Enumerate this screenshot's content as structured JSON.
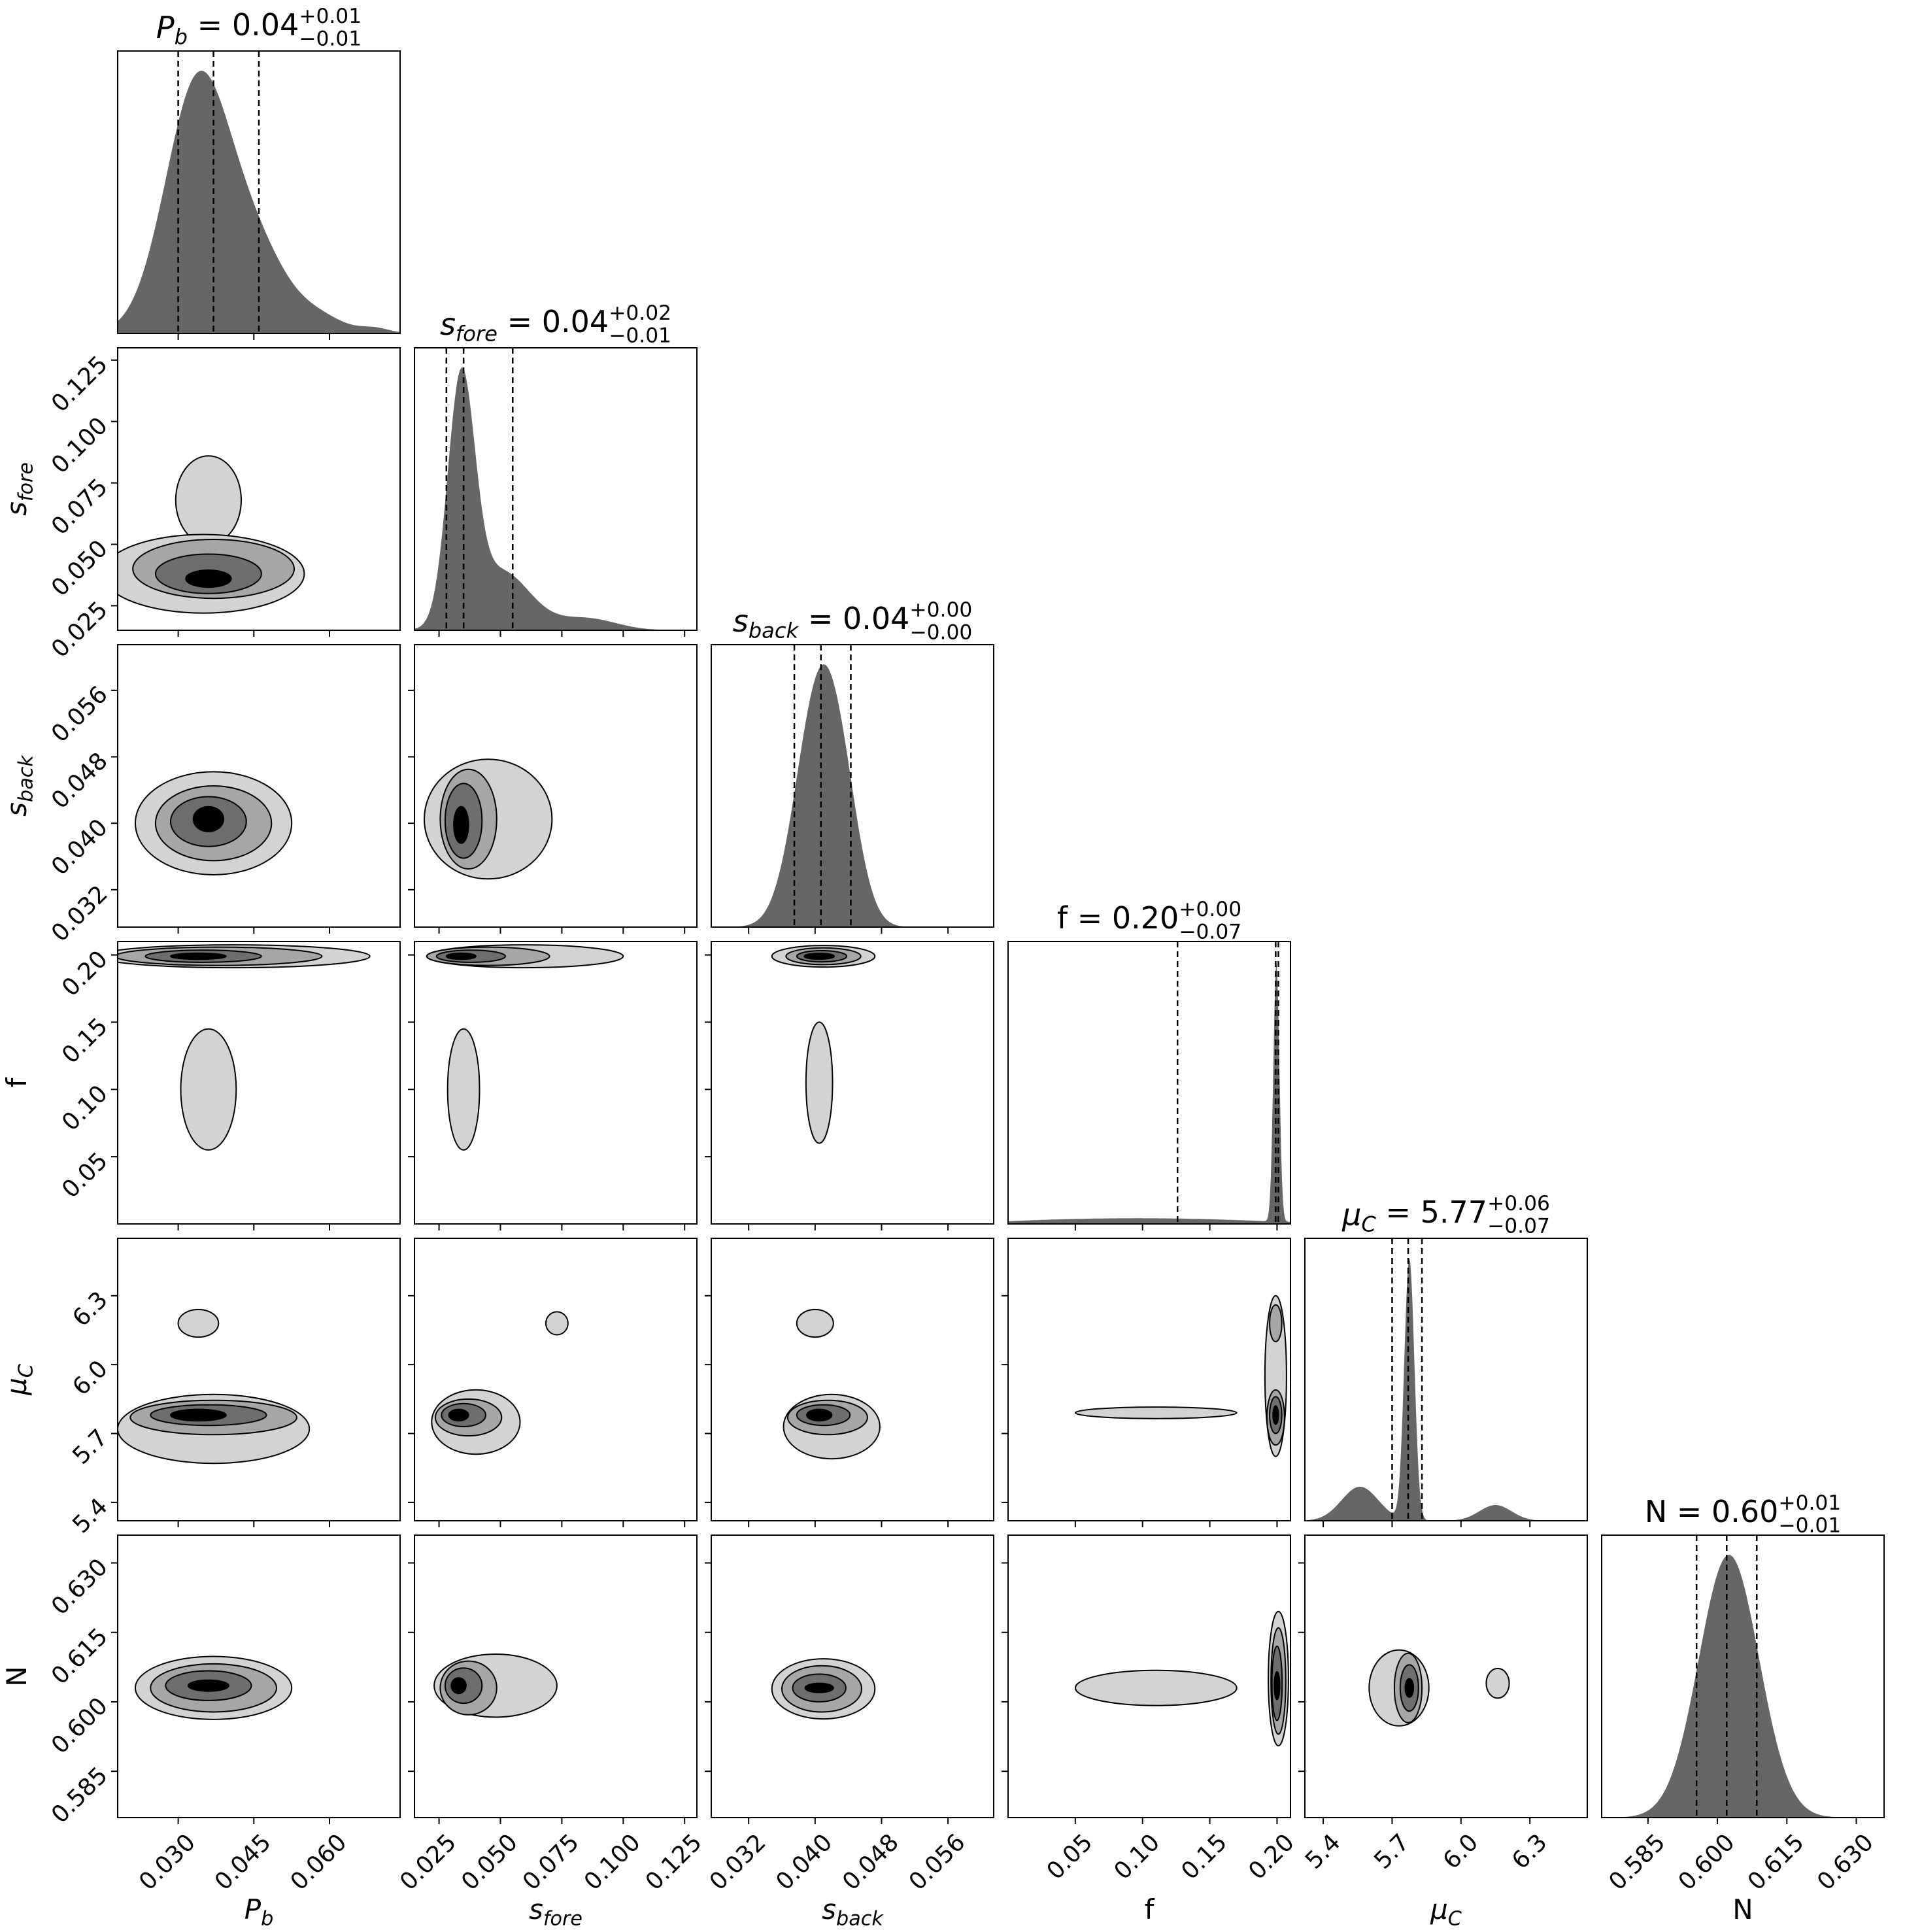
{
  "chart_data": {
    "type": "corner",
    "params": [
      {
        "id": "Pb",
        "axis_label": "P_b",
        "title_label": "P_b",
        "median": "0.04",
        "plus": "+0.01",
        "minus": "−0.01",
        "range": [
          0.018,
          0.074
        ],
        "ticks": [
          0.03,
          0.045,
          0.06
        ],
        "tick_labels": [
          "0.030",
          "0.045",
          "0.060"
        ],
        "quantiles": [
          0.03,
          0.037,
          0.046
        ]
      },
      {
        "id": "sfore",
        "axis_label": "s_fore",
        "title_label": "s_fore",
        "median": "0.04",
        "plus": "+0.02",
        "minus": "−0.01",
        "range": [
          0.015,
          0.13
        ],
        "ticks": [
          0.025,
          0.05,
          0.075,
          0.1,
          0.125
        ],
        "tick_labels": [
          "0.025",
          "0.050",
          "0.075",
          "0.100",
          "0.125"
        ],
        "quantiles": [
          0.028,
          0.035,
          0.055
        ]
      },
      {
        "id": "sback",
        "axis_label": "s_back",
        "title_label": "s_back",
        "median": "0.04",
        "plus": "+0.00",
        "minus": "−0.00",
        "range": [
          0.0275,
          0.0615
        ],
        "ticks": [
          0.032,
          0.04,
          0.048,
          0.056
        ],
        "tick_labels": [
          "0.032",
          "0.040",
          "0.048",
          "0.056"
        ],
        "quantiles": [
          0.0375,
          0.0407,
          0.0443
        ]
      },
      {
        "id": "f",
        "axis_label": "f",
        "title_label": "f",
        "median": "0.20",
        "plus": "+0.00",
        "minus": "−0.07",
        "range": [
          0.0,
          0.21
        ],
        "ticks": [
          0.05,
          0.1,
          0.15,
          0.2
        ],
        "tick_labels": [
          "0.05",
          "0.10",
          "0.15",
          "0.20"
        ],
        "quantiles": [
          0.126,
          0.199,
          0.201
        ]
      },
      {
        "id": "muC",
        "axis_label": "μ_C",
        "title_label": "μ_C",
        "median": "5.77",
        "plus": "+0.06",
        "minus": "−0.07",
        "range": [
          5.32,
          6.55
        ],
        "ticks": [
          5.4,
          5.7,
          6.0,
          6.3
        ],
        "tick_labels": [
          "5.4",
          "5.7",
          "6.0",
          "6.3"
        ],
        "quantiles": [
          5.7,
          5.77,
          5.83
        ]
      },
      {
        "id": "N",
        "axis_label": "N",
        "title_label": "N",
        "median": "0.60",
        "plus": "+0.01",
        "minus": "−0.01",
        "range": [
          0.575,
          0.636
        ],
        "ticks": [
          0.585,
          0.6,
          0.615,
          0.63
        ],
        "tick_labels": [
          "0.585",
          "0.600",
          "0.615",
          "0.630"
        ],
        "quantiles": [
          0.5955,
          0.602,
          0.6085
        ]
      }
    ],
    "marginals": {
      "Pb": {
        "components": [
          [
            0.034,
            0.0065,
            1.0
          ],
          [
            0.046,
            0.006,
            0.28
          ],
          [
            0.058,
            0.005,
            0.06
          ],
          [
            0.069,
            0.003,
            0.02
          ]
        ]
      },
      "sfore": {
        "components": [
          [
            0.034,
            0.0055,
            1.0
          ],
          [
            0.05,
            0.012,
            0.25
          ],
          [
            0.085,
            0.012,
            0.05
          ]
        ]
      },
      "sback": {
        "components": [
          [
            0.0405,
            0.0028,
            1.0
          ],
          [
            0.0435,
            0.0022,
            0.25
          ]
        ]
      },
      "f": {
        "components": [
          [
            0.1995,
            0.0022,
            1.0
          ],
          [
            0.04,
            0.05,
            0.012
          ],
          [
            0.13,
            0.06,
            0.018
          ]
        ]
      },
      "muC": {
        "components": [
          [
            5.775,
            0.022,
            1.0
          ],
          [
            5.56,
            0.08,
            0.13
          ],
          [
            6.15,
            0.07,
            0.06
          ]
        ]
      },
      "N": {
        "components": [
          [
            0.6025,
            0.0065,
            1.0
          ]
        ]
      }
    },
    "joint_blobs": [
      {
        "row": "sfore",
        "col": "Pb",
        "blobs": [
          {
            "cx": 0.036,
            "cy": 0.036,
            "sx": 0.0045,
            "sy": 0.0035,
            "level": 4
          },
          {
            "cx": 0.036,
            "cy": 0.038,
            "sx": 0.0105,
            "sy": 0.008,
            "level": 3
          },
          {
            "cx": 0.037,
            "cy": 0.04,
            "sx": 0.016,
            "sy": 0.012,
            "level": 2
          },
          {
            "cx": 0.036,
            "cy": 0.068,
            "sx": 0.0065,
            "sy": 0.018,
            "level": 1
          },
          {
            "cx": 0.035,
            "cy": 0.038,
            "sx": 0.02,
            "sy": 0.016,
            "level": 1
          }
        ]
      },
      {
        "row": "sback",
        "col": "Pb",
        "blobs": [
          {
            "cx": 0.036,
            "cy": 0.0405,
            "sx": 0.003,
            "sy": 0.0015,
            "level": 4
          },
          {
            "cx": 0.036,
            "cy": 0.0402,
            "sx": 0.0075,
            "sy": 0.003,
            "level": 3
          },
          {
            "cx": 0.037,
            "cy": 0.04,
            "sx": 0.0115,
            "sy": 0.0045,
            "level": 2
          },
          {
            "cx": 0.037,
            "cy": 0.04,
            "sx": 0.0155,
            "sy": 0.0062,
            "level": 1
          }
        ]
      },
      {
        "row": "sback",
        "col": "sfore",
        "blobs": [
          {
            "cx": 0.034,
            "cy": 0.0398,
            "sx": 0.003,
            "sy": 0.0022,
            "level": 4
          },
          {
            "cx": 0.035,
            "cy": 0.0403,
            "sx": 0.0075,
            "sy": 0.0045,
            "level": 3
          },
          {
            "cx": 0.037,
            "cy": 0.0405,
            "sx": 0.0115,
            "sy": 0.006,
            "level": 2
          },
          {
            "cx": 0.045,
            "cy": 0.0405,
            "sx": 0.026,
            "sy": 0.0072,
            "level": 1
          }
        ]
      },
      {
        "row": "f",
        "col": "Pb",
        "blobs": [
          {
            "cx": 0.034,
            "cy": 0.199,
            "sx": 0.0055,
            "sy": 0.0023,
            "level": 4
          },
          {
            "cx": 0.035,
            "cy": 0.199,
            "sx": 0.0115,
            "sy": 0.0045,
            "level": 3
          },
          {
            "cx": 0.038,
            "cy": 0.199,
            "sx": 0.0205,
            "sy": 0.0068,
            "level": 2
          },
          {
            "cx": 0.036,
            "cy": 0.1,
            "sx": 0.0055,
            "sy": 0.045,
            "level": 1
          },
          {
            "cx": 0.041,
            "cy": 0.199,
            "sx": 0.027,
            "sy": 0.0085,
            "level": 1
          }
        ]
      },
      {
        "row": "f",
        "col": "sfore",
        "blobs": [
          {
            "cx": 0.034,
            "cy": 0.199,
            "sx": 0.006,
            "sy": 0.0023,
            "level": 4
          },
          {
            "cx": 0.038,
            "cy": 0.199,
            "sx": 0.014,
            "sy": 0.0045,
            "level": 3
          },
          {
            "cx": 0.045,
            "cy": 0.199,
            "sx": 0.025,
            "sy": 0.0068,
            "level": 2
          },
          {
            "cx": 0.035,
            "cy": 0.1,
            "sx": 0.0065,
            "sy": 0.045,
            "level": 1
          },
          {
            "cx": 0.06,
            "cy": 0.199,
            "sx": 0.04,
            "sy": 0.0085,
            "level": 1
          }
        ]
      },
      {
        "row": "f",
        "col": "sback",
        "blobs": [
          {
            "cx": 0.0405,
            "cy": 0.199,
            "sx": 0.0018,
            "sy": 0.0022,
            "level": 4
          },
          {
            "cx": 0.0408,
            "cy": 0.199,
            "sx": 0.003,
            "sy": 0.0042,
            "level": 3
          },
          {
            "cx": 0.041,
            "cy": 0.199,
            "sx": 0.0045,
            "sy": 0.0062,
            "level": 2
          },
          {
            "cx": 0.0405,
            "cy": 0.105,
            "sx": 0.0016,
            "sy": 0.045,
            "level": 1
          },
          {
            "cx": 0.041,
            "cy": 0.199,
            "sx": 0.0062,
            "sy": 0.008,
            "level": 1
          }
        ]
      },
      {
        "row": "muC",
        "col": "Pb",
        "blobs": [
          {
            "cx": 0.034,
            "cy": 5.78,
            "sx": 0.0055,
            "sy": 0.025,
            "level": 4
          },
          {
            "cx": 0.036,
            "cy": 5.78,
            "sx": 0.0115,
            "sy": 0.045,
            "level": 3
          },
          {
            "cx": 0.037,
            "cy": 5.77,
            "sx": 0.0165,
            "sy": 0.075,
            "level": 2
          },
          {
            "cx": 0.034,
            "cy": 6.18,
            "sx": 0.004,
            "sy": 0.06,
            "level": 1
          },
          {
            "cx": 0.037,
            "cy": 5.72,
            "sx": 0.019,
            "sy": 0.15,
            "level": 1
          }
        ]
      },
      {
        "row": "muC",
        "col": "sfore",
        "blobs": [
          {
            "cx": 0.033,
            "cy": 5.78,
            "sx": 0.004,
            "sy": 0.025,
            "level": 4
          },
          {
            "cx": 0.035,
            "cy": 5.78,
            "sx": 0.009,
            "sy": 0.05,
            "level": 3
          },
          {
            "cx": 0.037,
            "cy": 5.77,
            "sx": 0.0135,
            "sy": 0.08,
            "level": 2
          },
          {
            "cx": 0.073,
            "cy": 6.18,
            "sx": 0.0045,
            "sy": 0.05,
            "level": 1
          },
          {
            "cx": 0.04,
            "cy": 5.75,
            "sx": 0.018,
            "sy": 0.14,
            "level": 1
          }
        ]
      },
      {
        "row": "muC",
        "col": "sback",
        "blobs": [
          {
            "cx": 0.0405,
            "cy": 5.78,
            "sx": 0.0015,
            "sy": 0.025,
            "level": 4
          },
          {
            "cx": 0.041,
            "cy": 5.78,
            "sx": 0.0032,
            "sy": 0.045,
            "level": 3
          },
          {
            "cx": 0.0415,
            "cy": 5.77,
            "sx": 0.0048,
            "sy": 0.075,
            "level": 2
          },
          {
            "cx": 0.04,
            "cy": 6.18,
            "sx": 0.0022,
            "sy": 0.06,
            "level": 1
          },
          {
            "cx": 0.042,
            "cy": 5.73,
            "sx": 0.0058,
            "sy": 0.14,
            "level": 1
          }
        ]
      },
      {
        "row": "muC",
        "col": "f",
        "blobs": [
          {
            "cx": 0.199,
            "cy": 5.78,
            "sx": 0.002,
            "sy": 0.04,
            "level": 4
          },
          {
            "cx": 0.199,
            "cy": 5.78,
            "sx": 0.0045,
            "sy": 0.08,
            "level": 3
          },
          {
            "cx": 0.199,
            "cy": 5.77,
            "sx": 0.0065,
            "sy": 0.12,
            "level": 2
          },
          {
            "cx": 0.199,
            "cy": 6.18,
            "sx": 0.0045,
            "sy": 0.08,
            "level": 2
          },
          {
            "cx": 0.11,
            "cy": 5.79,
            "sx": 0.06,
            "sy": 0.025,
            "level": 1
          },
          {
            "cx": 0.199,
            "cy": 5.95,
            "sx": 0.008,
            "sy": 0.35,
            "level": 1
          }
        ]
      },
      {
        "row": "N",
        "col": "Pb",
        "blobs": [
          {
            "cx": 0.036,
            "cy": 0.6035,
            "sx": 0.004,
            "sy": 0.0012,
            "level": 4
          },
          {
            "cx": 0.036,
            "cy": 0.6035,
            "sx": 0.0085,
            "sy": 0.0032,
            "level": 3
          },
          {
            "cx": 0.037,
            "cy": 0.603,
            "sx": 0.0125,
            "sy": 0.0052,
            "level": 2
          },
          {
            "cx": 0.037,
            "cy": 0.603,
            "sx": 0.0155,
            "sy": 0.0068,
            "level": 1
          }
        ]
      },
      {
        "row": "N",
        "col": "sfore",
        "blobs": [
          {
            "cx": 0.033,
            "cy": 0.6035,
            "sx": 0.003,
            "sy": 0.0017,
            "level": 4
          },
          {
            "cx": 0.035,
            "cy": 0.6035,
            "sx": 0.0075,
            "sy": 0.0038,
            "level": 3
          },
          {
            "cx": 0.037,
            "cy": 0.603,
            "sx": 0.0115,
            "sy": 0.0058,
            "level": 2
          },
          {
            "cx": 0.048,
            "cy": 0.6035,
            "sx": 0.025,
            "sy": 0.0068,
            "level": 1
          }
        ]
      },
      {
        "row": "N",
        "col": "sback",
        "blobs": [
          {
            "cx": 0.0405,
            "cy": 0.603,
            "sx": 0.0017,
            "sy": 0.001,
            "level": 4
          },
          {
            "cx": 0.0405,
            "cy": 0.603,
            "sx": 0.0032,
            "sy": 0.003,
            "level": 3
          },
          {
            "cx": 0.0408,
            "cy": 0.6028,
            "sx": 0.0048,
            "sy": 0.005,
            "level": 2
          },
          {
            "cx": 0.041,
            "cy": 0.6028,
            "sx": 0.0062,
            "sy": 0.0065,
            "level": 1
          }
        ]
      },
      {
        "row": "N",
        "col": "f",
        "blobs": [
          {
            "cx": 0.2,
            "cy": 0.6035,
            "sx": 0.002,
            "sy": 0.003,
            "level": 4
          },
          {
            "cx": 0.2,
            "cy": 0.604,
            "sx": 0.0038,
            "sy": 0.008,
            "level": 3
          },
          {
            "cx": 0.201,
            "cy": 0.6045,
            "sx": 0.0055,
            "sy": 0.0115,
            "level": 2
          },
          {
            "cx": 0.11,
            "cy": 0.603,
            "sx": 0.06,
            "sy": 0.0038,
            "level": 1
          },
          {
            "cx": 0.201,
            "cy": 0.605,
            "sx": 0.0075,
            "sy": 0.0145,
            "level": 1
          }
        ]
      },
      {
        "row": "N",
        "col": "muC",
        "blobs": [
          {
            "cx": 5.775,
            "cy": 0.603,
            "sx": 0.018,
            "sy": 0.002,
            "level": 4
          },
          {
            "cx": 5.775,
            "cy": 0.603,
            "sx": 0.04,
            "sy": 0.005,
            "level": 3
          },
          {
            "cx": 5.77,
            "cy": 0.603,
            "sx": 0.06,
            "sy": 0.0075,
            "level": 2
          },
          {
            "cx": 6.16,
            "cy": 0.604,
            "sx": 0.05,
            "sy": 0.0032,
            "level": 1
          },
          {
            "cx": 5.73,
            "cy": 0.603,
            "sx": 0.13,
            "sy": 0.0082,
            "level": 1
          }
        ]
      }
    ],
    "colors": {
      "fill_level_1": "#d3d3d3",
      "fill_level_2": "#a6a6a6",
      "fill_level_3": "#6e6e6e",
      "fill_level_4": "#000000",
      "marginal_fill": "#666666",
      "frame": "#000000",
      "quantile_line": "#000000"
    }
  }
}
